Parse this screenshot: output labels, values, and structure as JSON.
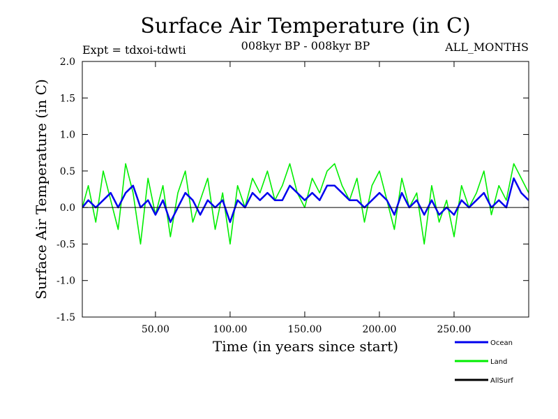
{
  "header": {
    "title": "Surface Air Temperature (in C)",
    "expt": "Expt = tdxoi-tdwti",
    "period": "008kyr BP - 008kyr BP",
    "months": "ALL_MONTHS"
  },
  "chart_data": {
    "type": "line",
    "title": "Surface Air Temperature (in C)",
    "xlabel": "Time (in years since start)",
    "ylabel": "Surface Air Temperature (in C)",
    "xlim": [
      1,
      300
    ],
    "ylim": [
      -1.5,
      2.0
    ],
    "x_ticks": [
      50,
      100,
      150,
      200,
      250
    ],
    "x_tick_labels": [
      "50.00",
      "100.00",
      "150.00",
      "200.00",
      "250.00"
    ],
    "y_ticks": [
      -1.5,
      -1.0,
      -0.5,
      0.0,
      0.5,
      1.0,
      1.5,
      2.0
    ],
    "y_tick_labels": [
      "-1.5",
      "-1.0",
      "-0.5",
      "0.0",
      "0.5",
      "1.0",
      "1.5",
      "2.0"
    ],
    "zero_line": true,
    "grid": false,
    "legend_position": "bottom-right",
    "series": [
      {
        "name": "Land",
        "color": "#00ee00",
        "x": [
          1,
          5,
          10,
          15,
          20,
          25,
          30,
          35,
          40,
          45,
          50,
          55,
          60,
          65,
          70,
          75,
          80,
          85,
          90,
          95,
          100,
          105,
          110,
          115,
          120,
          125,
          130,
          135,
          140,
          145,
          150,
          155,
          160,
          165,
          170,
          175,
          180,
          185,
          190,
          195,
          200,
          205,
          210,
          215,
          220,
          225,
          230,
          235,
          240,
          245,
          250,
          255,
          260,
          265,
          270,
          275,
          280,
          285,
          290,
          295,
          300
        ],
        "values": [
          0.0,
          0.3,
          -0.2,
          0.5,
          0.1,
          -0.3,
          0.6,
          0.2,
          -0.5,
          0.4,
          -0.1,
          0.3,
          -0.4,
          0.2,
          0.5,
          -0.2,
          0.1,
          0.4,
          -0.3,
          0.2,
          -0.5,
          0.3,
          0.0,
          0.4,
          0.2,
          0.5,
          0.1,
          0.3,
          0.6,
          0.2,
          0.0,
          0.4,
          0.2,
          0.5,
          0.6,
          0.3,
          0.1,
          0.4,
          -0.2,
          0.3,
          0.5,
          0.1,
          -0.3,
          0.4,
          0.0,
          0.2,
          -0.5,
          0.3,
          -0.2,
          0.1,
          -0.4,
          0.3,
          0.0,
          0.2,
          0.5,
          -0.1,
          0.3,
          0.1,
          0.6,
          0.4,
          0.2
        ]
      },
      {
        "name": "Ocean",
        "color": "#0000ee",
        "x": [
          1,
          5,
          10,
          15,
          20,
          25,
          30,
          35,
          40,
          45,
          50,
          55,
          60,
          65,
          70,
          75,
          80,
          85,
          90,
          95,
          100,
          105,
          110,
          115,
          120,
          125,
          130,
          135,
          140,
          145,
          150,
          155,
          160,
          165,
          170,
          175,
          180,
          185,
          190,
          195,
          200,
          205,
          210,
          215,
          220,
          225,
          230,
          235,
          240,
          245,
          250,
          255,
          260,
          265,
          270,
          275,
          280,
          285,
          290,
          295,
          300
        ],
        "values": [
          0.0,
          0.1,
          0.0,
          0.1,
          0.2,
          0.0,
          0.2,
          0.3,
          0.0,
          0.1,
          -0.1,
          0.1,
          -0.2,
          0.0,
          0.2,
          0.1,
          -0.1,
          0.1,
          0.0,
          0.1,
          -0.2,
          0.1,
          0.0,
          0.2,
          0.1,
          0.2,
          0.1,
          0.1,
          0.3,
          0.2,
          0.1,
          0.2,
          0.1,
          0.3,
          0.3,
          0.2,
          0.1,
          0.1,
          0.0,
          0.1,
          0.2,
          0.1,
          -0.1,
          0.2,
          0.0,
          0.1,
          -0.1,
          0.1,
          -0.1,
          0.0,
          -0.1,
          0.1,
          0.0,
          0.1,
          0.2,
          0.0,
          0.1,
          0.0,
          0.4,
          0.2,
          0.1
        ]
      },
      {
        "name": "AllSurf",
        "color": "#000000",
        "x": [],
        "values": []
      }
    ]
  },
  "legend": [
    {
      "label": "Ocean",
      "color": "#0000ee"
    },
    {
      "label": "Land",
      "color": "#00ee00"
    },
    {
      "label": "AllSurf",
      "color": "#000000"
    }
  ]
}
